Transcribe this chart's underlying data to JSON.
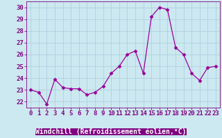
{
  "x": [
    0,
    1,
    2,
    3,
    4,
    5,
    6,
    7,
    8,
    9,
    10,
    11,
    12,
    13,
    14,
    15,
    16,
    17,
    18,
    19,
    20,
    21,
    22,
    23
  ],
  "y": [
    23.0,
    22.8,
    21.8,
    23.9,
    23.2,
    23.1,
    23.1,
    22.6,
    22.8,
    23.3,
    24.4,
    25.0,
    26.0,
    26.3,
    24.4,
    29.2,
    30.0,
    29.8,
    26.6,
    26.0,
    24.4,
    23.8,
    24.9,
    25.0
  ],
  "line_color": "#990099",
  "marker": "D",
  "marker_size": 2.5,
  "bg_color": "#cce8f0",
  "grid_color": "#aaccdd",
  "ylabel_ticks": [
    22,
    23,
    24,
    25,
    26,
    27,
    28,
    29,
    30
  ],
  "xlabel": "Windchill (Refroidissement éolien,°C)",
  "ylim": [
    21.5,
    30.5
  ],
  "xlim": [
    -0.5,
    23.5
  ],
  "xlabel_color": "#ffffff",
  "xlabel_bg": "#800080",
  "tick_color": "#800080",
  "xlabel_fontsize": 7,
  "tick_fontsize": 6.5
}
